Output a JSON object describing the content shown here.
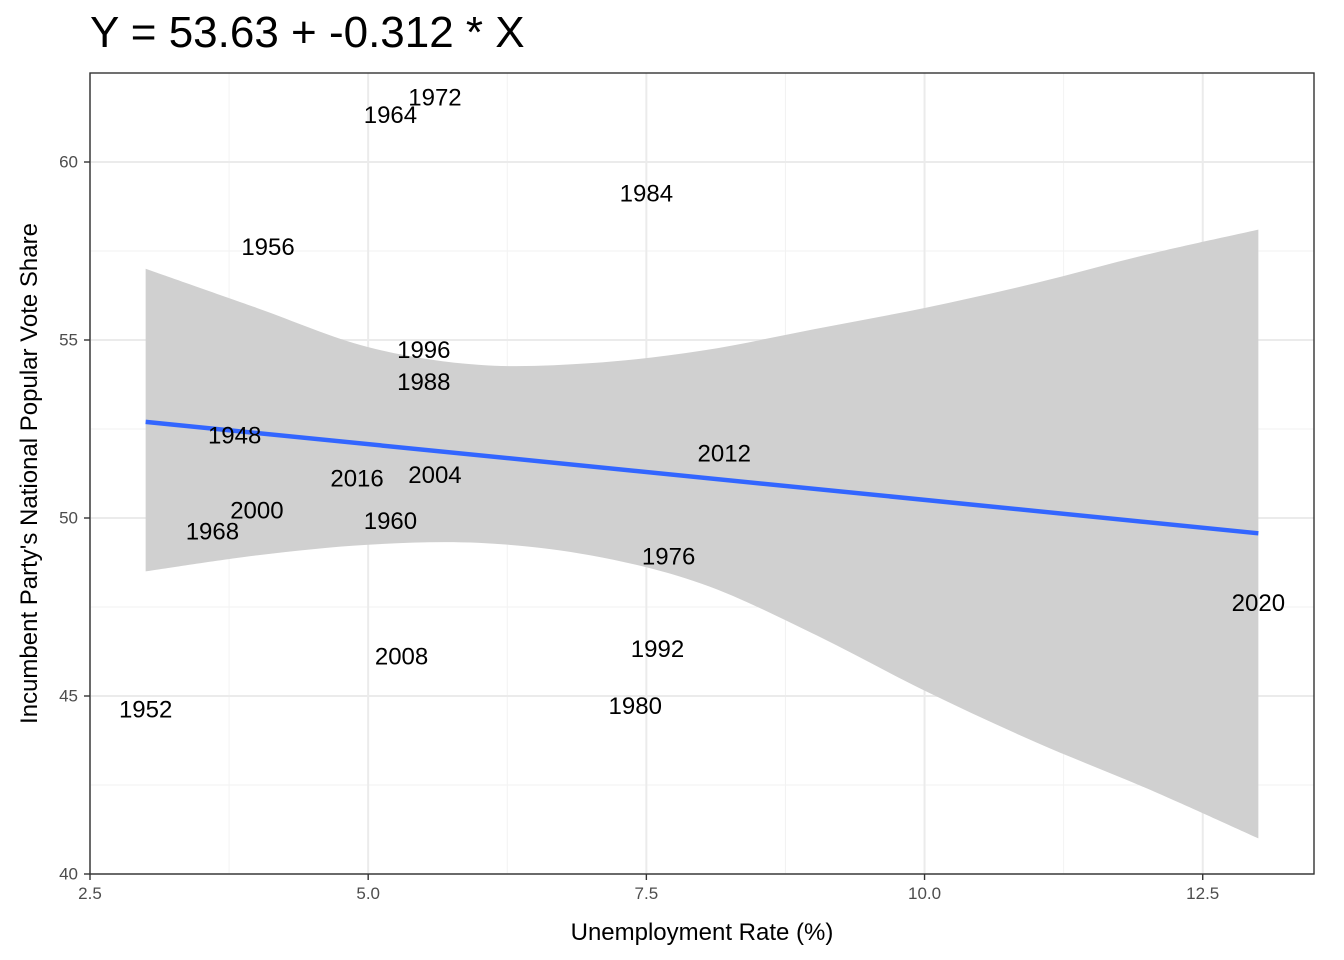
{
  "chart_data": {
    "type": "scatter",
    "title": "Y = 53.63 + -0.312 * X",
    "xlabel": "Unemployment Rate (%)",
    "ylabel": "Incumbent Party's National Popular Vote Share",
    "xlim": [
      2.5,
      13.5
    ],
    "ylim": [
      40,
      62.5
    ],
    "x_ticks": [
      2.5,
      5.0,
      7.5,
      10.0,
      12.5
    ],
    "x_tick_labels": [
      "2.5",
      "5.0",
      "7.5",
      "10.0",
      "12.5"
    ],
    "y_ticks": [
      40,
      45,
      50,
      55,
      60
    ],
    "y_tick_labels": [
      "40",
      "45",
      "50",
      "55",
      "60"
    ],
    "grid": true,
    "points": [
      {
        "label": "1948",
        "x": 3.8,
        "y": 52.3
      },
      {
        "label": "1952",
        "x": 3.0,
        "y": 44.6
      },
      {
        "label": "1956",
        "x": 4.1,
        "y": 57.6
      },
      {
        "label": "1960",
        "x": 5.2,
        "y": 49.9
      },
      {
        "label": "1964",
        "x": 5.2,
        "y": 61.3
      },
      {
        "label": "1968",
        "x": 3.6,
        "y": 49.6
      },
      {
        "label": "1972",
        "x": 5.6,
        "y": 61.8
      },
      {
        "label": "1976",
        "x": 7.7,
        "y": 48.9
      },
      {
        "label": "1980",
        "x": 7.4,
        "y": 44.7
      },
      {
        "label": "1984",
        "x": 7.5,
        "y": 59.1
      },
      {
        "label": "1988",
        "x": 5.5,
        "y": 53.8
      },
      {
        "label": "1992",
        "x": 7.6,
        "y": 46.3
      },
      {
        "label": "1996",
        "x": 5.5,
        "y": 54.7
      },
      {
        "label": "2000",
        "x": 4.0,
        "y": 50.2
      },
      {
        "label": "2004",
        "x": 5.6,
        "y": 51.2
      },
      {
        "label": "2008",
        "x": 5.3,
        "y": 46.1
      },
      {
        "label": "2012",
        "x": 8.2,
        "y": 51.8
      },
      {
        "label": "2016",
        "x": 4.9,
        "y": 51.1
      },
      {
        "label": "2020",
        "x": 13.0,
        "y": 47.6
      }
    ],
    "fit_line": {
      "x": [
        3.0,
        13.0
      ],
      "y": [
        52.7,
        49.57
      ],
      "color": "#3366ff"
    },
    "confidence_band": {
      "color": "#d0d0d0",
      "x": [
        3.0,
        4.0,
        5.0,
        6.0,
        7.0,
        8.0,
        9.0,
        10.0,
        11.0,
        12.0,
        13.0
      ],
      "upper": [
        57.0,
        55.9,
        54.8,
        54.3,
        54.35,
        54.7,
        55.3,
        55.9,
        56.6,
        57.4,
        58.1
      ],
      "lower": [
        48.5,
        48.95,
        49.25,
        49.3,
        48.95,
        48.15,
        46.75,
        45.15,
        43.7,
        42.4,
        41.0
      ]
    }
  }
}
